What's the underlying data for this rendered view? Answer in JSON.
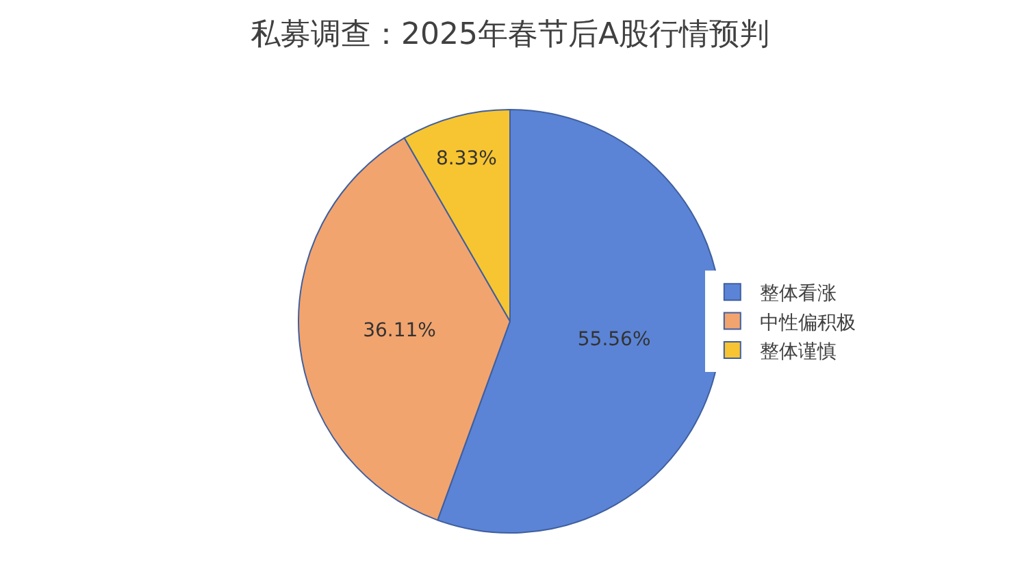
{
  "chart_data": {
    "type": "pie",
    "title": "私募调查：2025年春节后A股行情预判",
    "categories": [
      "整体看涨",
      "中性偏积极",
      "整体谨慎"
    ],
    "values": [
      55.56,
      36.11,
      8.33
    ],
    "value_labels": [
      "55.56%",
      "36.11%",
      "8.33%"
    ],
    "colors": [
      "#5b84d6",
      "#f2a46e",
      "#f7c531"
    ],
    "legend": "right"
  }
}
